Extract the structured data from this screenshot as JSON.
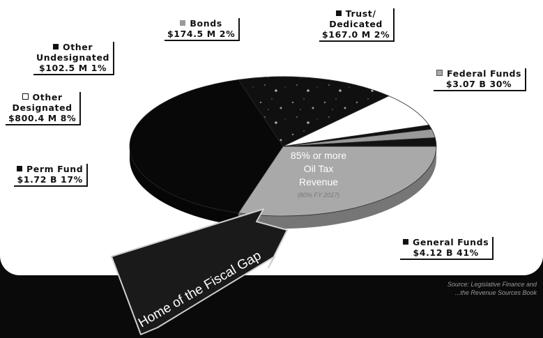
{
  "chart_data": {
    "type": "pie",
    "slices": [
      {
        "key": "federal",
        "name": "Federal Funds",
        "amount": "$3.07 B",
        "percent": 30,
        "color": "#a9a9a9",
        "texture": "none"
      },
      {
        "key": "general",
        "name": "General Funds",
        "amount": "$4.12 B",
        "percent": 41,
        "color": "#080808",
        "texture": "none"
      },
      {
        "key": "perm",
        "name": "Perm Fund",
        "amount": "$1.72 B",
        "percent": 17,
        "color": "#101010",
        "texture": "speckle"
      },
      {
        "key": "other_designated",
        "name": "Other Designated",
        "amount": "$800.4 M",
        "percent": 8,
        "color": "#ffffff",
        "texture": "none"
      },
      {
        "key": "other_undesignated",
        "name": "Other Undesignated",
        "amount": "$102.5 M",
        "percent": 1,
        "color": "#111111",
        "texture": "none"
      },
      {
        "key": "bonds",
        "name": "Bonds",
        "amount": "$174.5 M",
        "percent": 2,
        "color": "#9a9a9a",
        "texture": "none"
      },
      {
        "key": "trust",
        "name": "Trust/ Dedicated",
        "amount": "$167.0 M",
        "percent": 2,
        "color": "#121212",
        "texture": "none"
      }
    ],
    "labels": {
      "bonds": {
        "line1": "Bonds",
        "line2": "$174.5 M  2%",
        "swatch": "#9a9a9a"
      },
      "trust": {
        "line1": "Trust/",
        "line2": "Dedicated",
        "line3": "$167.0 M 2%",
        "swatch": "#111111"
      },
      "other_undesignated": {
        "line1": "Other",
        "line2": "Undesignated",
        "line3": "$102.5 M 1%",
        "swatch": "#111111"
      },
      "federal": {
        "line1": "Federal Funds",
        "line2": "$3.07 B  30%",
        "swatch": "#a9a9a9"
      },
      "other_designated": {
        "line1": "Other",
        "line2": "Designated",
        "line3": "$800.4 M 8%",
        "swatch": "#ffffff"
      },
      "perm": {
        "line1": "Perm Fund",
        "line2": "$1.72 B 17%",
        "swatch": "#111111"
      },
      "general": {
        "line1": "General Funds",
        "line2": "$4.12 B  41%",
        "swatch": "#111111"
      }
    },
    "annotation": {
      "line1": "85% or more",
      "line2": "Oil Tax",
      "line3": "Revenue",
      "note": "(80% FY 2017)"
    },
    "callout": "Home of the Fiscal Gap",
    "source": {
      "line1": "Source: Legislative Finance and",
      "line2": "...the Revenue Sources Book"
    }
  }
}
